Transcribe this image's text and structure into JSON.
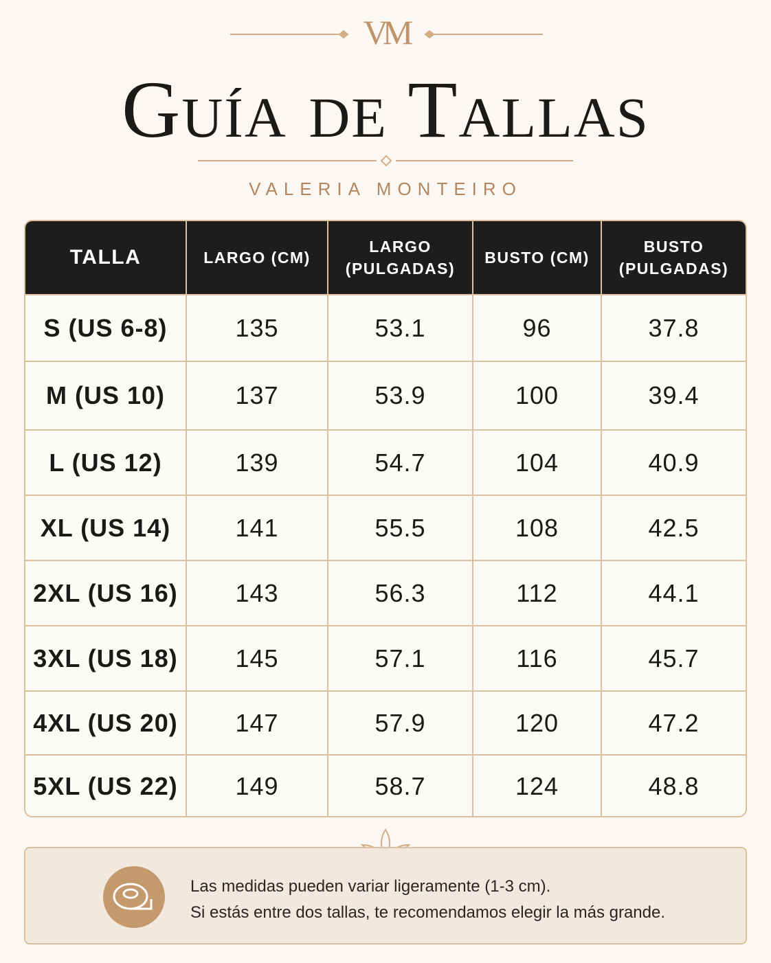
{
  "logo": "VM",
  "header": {
    "title": "Guía de Tallas",
    "brand": "VALERIA MONTEIRO"
  },
  "table": {
    "columns": [
      "TALLA",
      "LARGO (CM)",
      "LARGO (PULGADAS)",
      "BUSTO (CM)",
      "BUSTO (PULGADAS)"
    ],
    "rows": [
      [
        "S (US 6-8)",
        135,
        53.1,
        96,
        37.8
      ],
      [
        "M (US 10)",
        137,
        53.9,
        100,
        39.4
      ],
      [
        "L (US 12)",
        139,
        54.7,
        104,
        40.9
      ],
      [
        "XL (US 14)",
        141,
        55.5,
        108,
        42.5
      ],
      [
        "2XL (US 16)",
        143,
        56.3,
        112,
        44.1
      ],
      [
        "3XL (US 18)",
        145,
        57.1,
        116,
        45.7
      ],
      [
        "4XL (US 20)",
        147,
        57.9,
        120,
        47.2
      ],
      [
        "5XL (US 22)",
        149,
        58.7,
        124,
        48.8
      ]
    ]
  },
  "note": {
    "lines": [
      "Las medidas pueden variar ligeramente (1-3 cm).",
      "Si estás entre dos tallas, te recomendamos elegir la más grande."
    ]
  }
}
